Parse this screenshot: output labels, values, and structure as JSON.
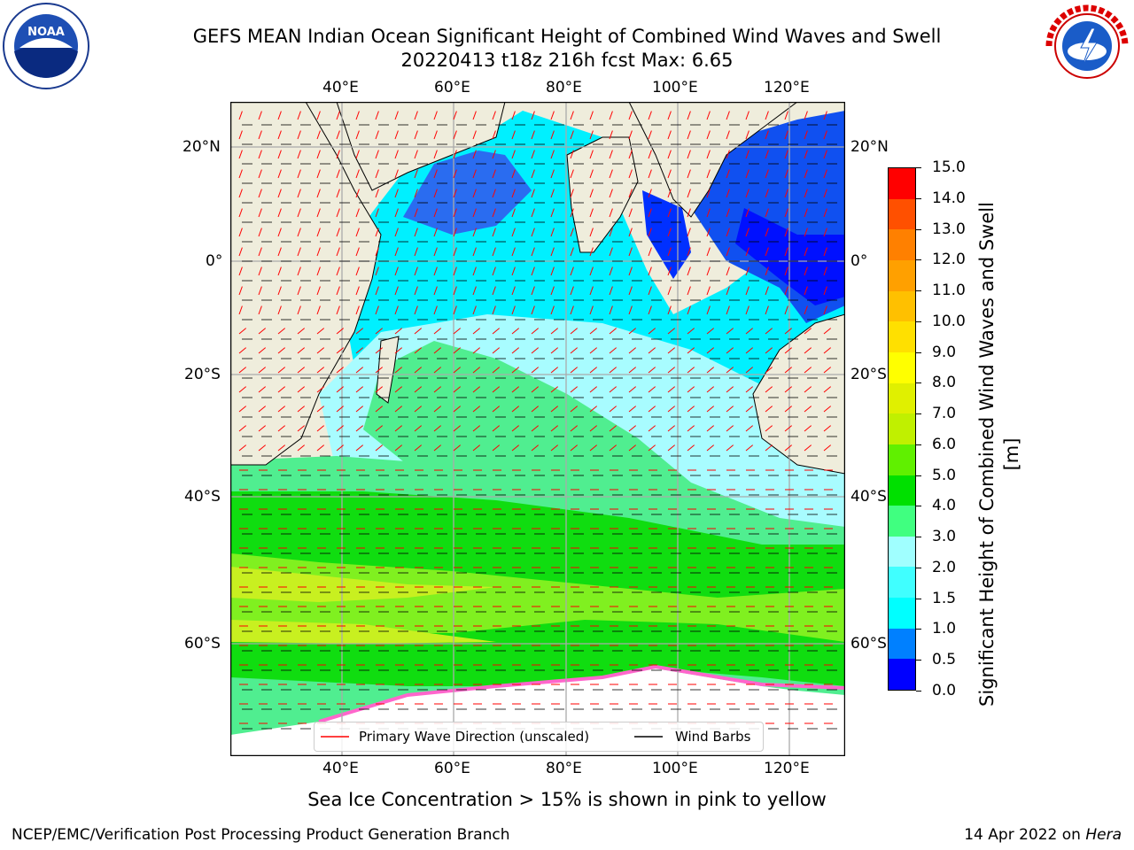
{
  "header": {
    "title_line1": "GEFS MEAN Indian Ocean Significant Height of Combined Wind Waves and Swell",
    "title_line2": "20220413 t18z 216h fcst   Max: 6.65"
  },
  "logos": {
    "left": {
      "name": "noaa-logo",
      "text": "NOAA"
    },
    "right": {
      "name": "nws-logo",
      "text": "NATIONAL WEATHER SERVICE"
    }
  },
  "map": {
    "lon_ticks_top": [
      "40°E",
      "60°E",
      "80°E",
      "100°E",
      "120°E"
    ],
    "lon_ticks_bottom": [
      "40°E",
      "60°E",
      "80°E",
      "100°E",
      "120°E"
    ],
    "lat_ticks_left": [
      "20°N",
      "0°",
      "20°S",
      "40°S",
      "60°S"
    ],
    "lat_ticks_right": [
      "20°N",
      "0°",
      "20°S",
      "40°S",
      "60°S"
    ],
    "legend": {
      "primary": "Primary Wave Direction (unscaled)",
      "barbs": "Wind Barbs",
      "primary_color": "#ff0000",
      "barbs_color": "#000000"
    }
  },
  "colorbar": {
    "label": "Significant Height of Combined Wind Waves and Swell [m]",
    "ticks": [
      "0.0",
      "0.5",
      "1.0",
      "1.5",
      "2.0",
      "3.0",
      "4.0",
      "5.0",
      "6.0",
      "7.0",
      "8.0",
      "9.0",
      "10.0",
      "11.0",
      "12.0",
      "13.0",
      "14.0",
      "15.0"
    ],
    "colors": [
      "#0000ff",
      "#0080ff",
      "#00ffff",
      "#40ffff",
      "#a0ffff",
      "#40ff80",
      "#00e000",
      "#60f000",
      "#c0f000",
      "#e0f000",
      "#ffff00",
      "#ffe000",
      "#ffc000",
      "#ffa000",
      "#ff8000",
      "#ff5000",
      "#ff0000"
    ]
  },
  "footer": {
    "note": "Sea Ice Concentration > 15% is shown in pink to yellow",
    "credit": "NCEP/EMC/Verification Post Processing Product Generation Branch",
    "date": "14 Apr 2022 on",
    "host": "Hera"
  },
  "colors": {
    "land": "#efeddc",
    "ice_free": "#ffffff",
    "sea_ice": "#ff66cc",
    "grid": "#aaaaaa"
  }
}
